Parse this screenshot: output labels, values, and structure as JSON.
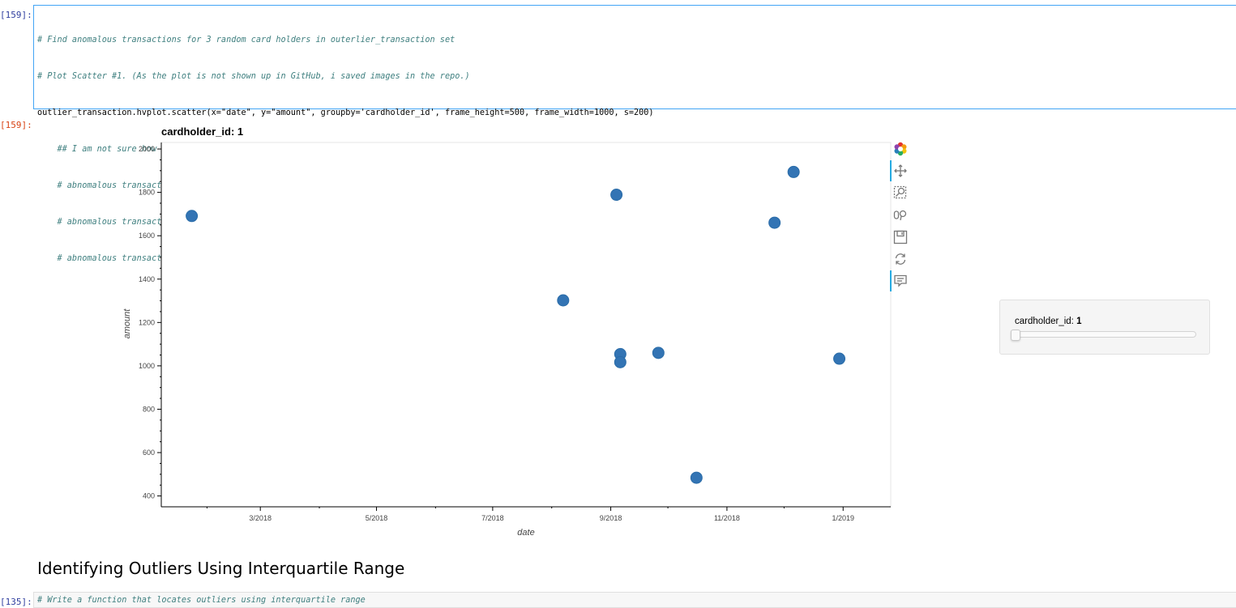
{
  "cells": {
    "input_prompt": "[159]:",
    "output_prompt": "[159]:",
    "code_lines": [
      "# Find anomalous transactions for 3 random card holders in outerlier_transaction set",
      "# Plot Scatter #1. (As the plot is not shown up in GitHub, i saved images in the repo.)",
      "outlier_transaction.hvplot.scatter(x=\"date\", y=\"amount\", groupby='cardholder_id', frame_height=500, frame_width=1000, s=200)",
      "    ## I am not sure how to answer this question but, my answers are",
      "    # abnomalous transactions for chardholder_id _1 = a transaction which was happend pried to 3/2018 was so isolated.",
      "    # abnomalous transactions for chardholder_id_3 = there might be a dupulicated transaction in 7/2018.",
      "    # abnomalous transactions for chardholder_id_24 = the amount of a transaction which was recorded in 5/18 was too high."
    ],
    "next_prompt": "[135]:",
    "next_code": "# Write a function that locates outliers using interquartile range"
  },
  "markdown": {
    "heading": "Identifying Outliers Using Interquartile Range"
  },
  "widget": {
    "label": "cardholder_id:",
    "value": "1"
  },
  "toolbar": {
    "icons": [
      "bokeh-logo-icon",
      "pan-icon",
      "box-zoom-icon",
      "wheel-zoom-icon",
      "save-icon",
      "reset-icon",
      "hover-icon"
    ]
  },
  "chart_data": {
    "type": "scatter",
    "title": "cardholder_id: 1",
    "xlabel": "date",
    "ylabel": "amount",
    "xlim": [
      "2018-01-08",
      "2019-01-26"
    ],
    "ylim": [
      350,
      2030
    ],
    "xticks": [
      {
        "date": "2018-03-01",
        "label": "3/2018"
      },
      {
        "date": "2018-05-01",
        "label": "5/2018"
      },
      {
        "date": "2018-07-01",
        "label": "7/2018"
      },
      {
        "date": "2018-09-01",
        "label": "9/2018"
      },
      {
        "date": "2018-11-01",
        "label": "11/2018"
      },
      {
        "date": "2019-01-01",
        "label": "1/2019"
      }
    ],
    "yticks": [
      400,
      600,
      800,
      1000,
      1200,
      1400,
      1600,
      1800,
      2000
    ],
    "points": [
      {
        "x": "2018-01-24",
        "y": 1691
      },
      {
        "x": "2018-08-07",
        "y": 1302
      },
      {
        "x": "2018-09-04",
        "y": 1789
      },
      {
        "x": "2018-09-06",
        "y": 1054
      },
      {
        "x": "2018-09-06",
        "y": 1017
      },
      {
        "x": "2018-09-26",
        "y": 1060
      },
      {
        "x": "2018-10-16",
        "y": 484
      },
      {
        "x": "2018-11-26",
        "y": 1660
      },
      {
        "x": "2018-12-06",
        "y": 1894
      },
      {
        "x": "2018-12-30",
        "y": 1033
      }
    ],
    "marker_color": "#30a2da",
    "grid": false,
    "legend": "none"
  }
}
